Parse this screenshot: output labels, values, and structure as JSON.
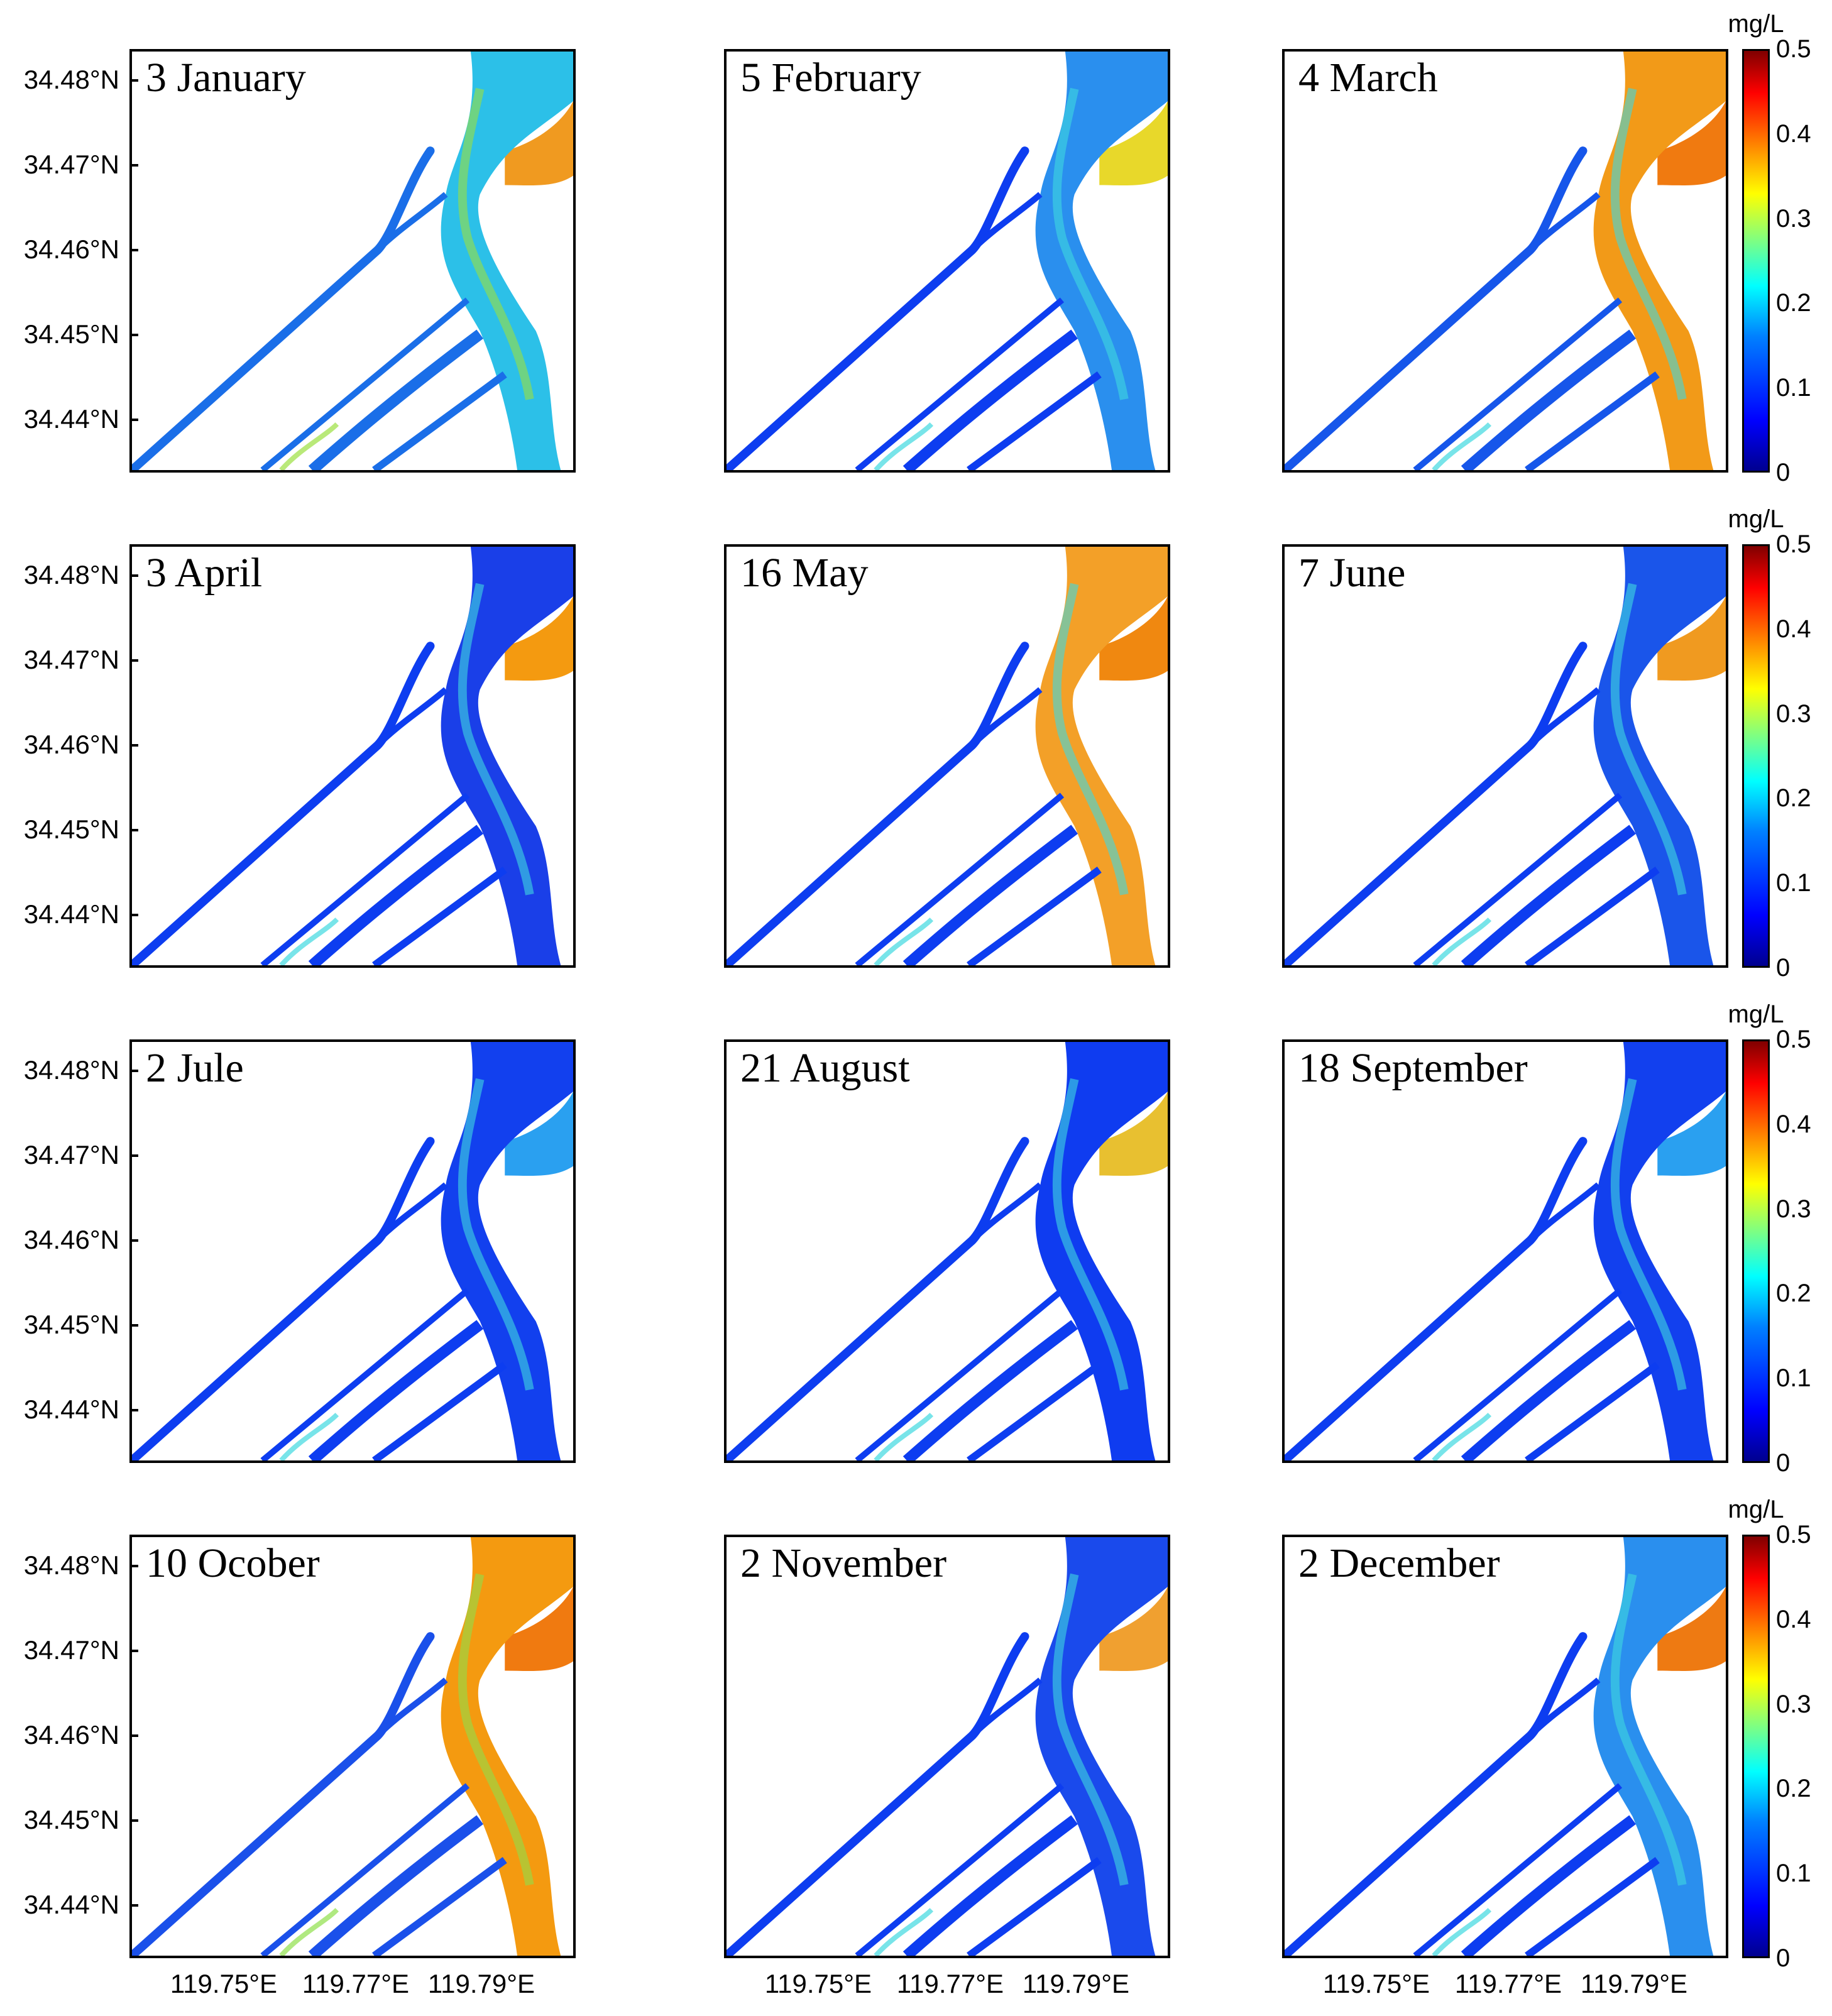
{
  "colors": {
    "deep_blue": "#1a2fe6",
    "blue": "#0d3df0",
    "light_blue": "#2aa0f0",
    "cyan": "#3fd8e0",
    "green": "#8fe04a",
    "yellow": "#e8e030",
    "orange": "#f49a10",
    "dark_orange": "#ee7a12"
  },
  "y_axis_labels": [
    "34.48°N",
    "34.47°N",
    "34.46°N",
    "34.45°N",
    "34.44°N"
  ],
  "x_axis_labels": [
    "119.75°E",
    "119.77°E",
    "119.79°E"
  ],
  "colorbar": {
    "unit": "mg/L",
    "ticks": [
      "0.5",
      "0.4",
      "0.3",
      "0.2",
      "0.1",
      "0"
    ]
  },
  "panels": [
    {
      "title": "3 January",
      "river": "#2cc0e8",
      "channel": "#1a6ee8",
      "bank": "#f09a20",
      "accent": "#9be040"
    },
    {
      "title": "5 February",
      "river": "#2a8fee",
      "channel": "#0d3df0",
      "bank": "#e8d82a",
      "accent": "#3fd8e0"
    },
    {
      "title": "4 March",
      "river": "#f29a18",
      "channel": "#1656ea",
      "bank": "#f07a10",
      "accent": "#3fd8e0"
    },
    {
      "title": "3 April",
      "river": "#1a3fe8",
      "channel": "#0d3df0",
      "bank": "#f49a10",
      "accent": "#3fd8e0"
    },
    {
      "title": "16 May",
      "river": "#f3a028",
      "channel": "#0d3df0",
      "bank": "#f08810",
      "accent": "#3fd8e0"
    },
    {
      "title": "7 June",
      "river": "#1a55ea",
      "channel": "#0d3df0",
      "bank": "#f09a20",
      "accent": "#3fd8e0"
    },
    {
      "title": "2 Jule",
      "river": "#1240ee",
      "channel": "#0d3df0",
      "bank": "#2aa0f0",
      "accent": "#3fd8e0"
    },
    {
      "title": "21 August",
      "river": "#0f3cf0",
      "channel": "#0d3df0",
      "bank": "#e8c030",
      "accent": "#3fd8e0"
    },
    {
      "title": "18 September",
      "river": "#1240ee",
      "channel": "#0d3df0",
      "bank": "#2aa0f0",
      "accent": "#3fd8e0"
    },
    {
      "title": "10 Ocober",
      "river": "#f49a10",
      "channel": "#1a50ea",
      "bank": "#f07a10",
      "accent": "#8fe04a"
    },
    {
      "title": "2 November",
      "river": "#1a4aec",
      "channel": "#0d3df0",
      "bank": "#f0a030",
      "accent": "#3fd8e0"
    },
    {
      "title": "2 December",
      "river": "#2a8fee",
      "channel": "#0d3df0",
      "bank": "#ee7a12",
      "accent": "#3fd8e0"
    }
  ]
}
